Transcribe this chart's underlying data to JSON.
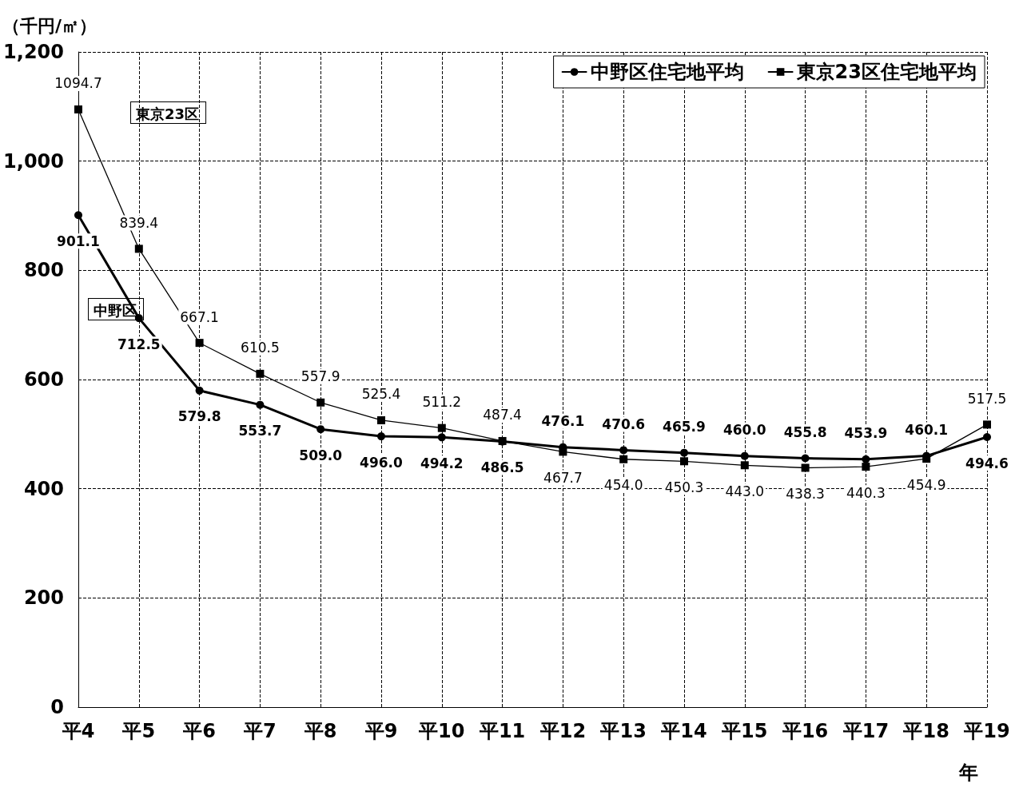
{
  "chart_data": {
    "type": "line",
    "ylabel": "（千円/㎡）",
    "xlabel": "年",
    "categories": [
      "平4",
      "平5",
      "平6",
      "平7",
      "平8",
      "平9",
      "平10",
      "平11",
      "平12",
      "平13",
      "平14",
      "平15",
      "平16",
      "平17",
      "平18",
      "平19"
    ],
    "series": [
      {
        "name": "中野区住宅地平均",
        "color": "#000000",
        "marker": "circle",
        "values": [
          901.1,
          712.5,
          579.8,
          553.7,
          509.0,
          496.0,
          494.2,
          486.5,
          476.1,
          470.6,
          465.9,
          460.0,
          455.8,
          453.9,
          460.1,
          494.6
        ],
        "value_labels": [
          "901.1",
          "712.5",
          "579.8",
          "553.7",
          "509.0",
          "496.0",
          "494.2",
          "486.5",
          "476.1",
          "470.6",
          "465.9",
          "460.0",
          "455.8",
          "453.9",
          "460.1",
          "494.6"
        ]
      },
      {
        "name": "東京23区住宅地平均",
        "color": "#000000",
        "marker": "square",
        "values": [
          1094.7,
          839.4,
          667.1,
          610.5,
          557.9,
          525.4,
          511.2,
          487.4,
          467.7,
          454.0,
          450.3,
          443.0,
          438.3,
          440.3,
          454.9,
          517.5
        ],
        "value_labels": [
          "1094.7",
          "839.4",
          "667.1",
          "610.5",
          "557.9",
          "525.4",
          "511.2",
          "487.4",
          "467.7",
          "454.0",
          "450.3",
          "443.0",
          "438.3",
          "440.3",
          "454.9",
          "517.5"
        ]
      }
    ],
    "ylim": [
      0,
      1200
    ],
    "yticks": [
      0,
      200,
      400,
      600,
      800,
      {
        "value": 1000,
        "label": "1,000"
      },
      {
        "value": 1200,
        "label": "1,200"
      }
    ],
    "grid": true,
    "legend": "top right",
    "line_style": "solid",
    "annotations": [
      "東京23区",
      "中野区"
    ]
  }
}
